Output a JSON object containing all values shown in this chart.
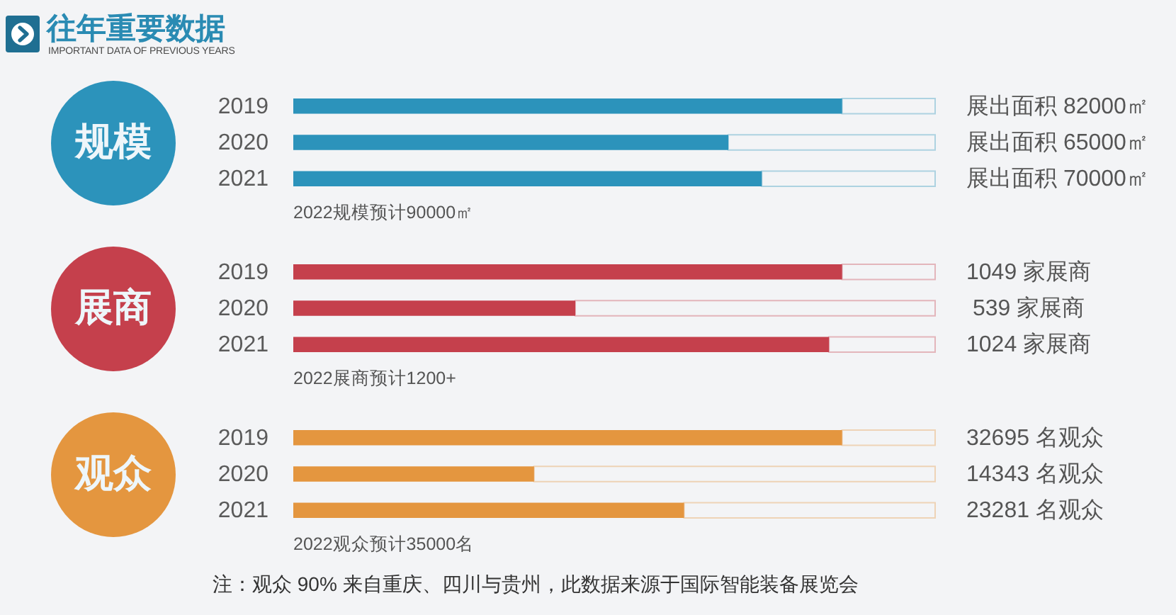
{
  "chart_data": [
    {
      "type": "other",
      "title": "往年重要数据",
      "subtitle": "IMPORTANT DATA OF PREVIOUS YEARS"
    },
    {
      "type": "bar",
      "orientation": "horizontal",
      "title": "规模",
      "categories": [
        "2019",
        "2020",
        "2021"
      ],
      "values": [
        82000,
        65000,
        70000
      ],
      "color": "#2c93bb",
      "value_labels": [
        "展出面积 82000㎡",
        "展出面积 65000㎡",
        "展出面积 70000㎡"
      ],
      "annotations": [
        "2022规模预计90000㎡"
      ]
    },
    {
      "type": "bar",
      "orientation": "horizontal",
      "title": "展商",
      "categories": [
        "2019",
        "2020",
        "2021"
      ],
      "values": [
        1049,
        539,
        1024
      ],
      "color": "#c5404c",
      "value_labels": [
        "1049 家展商",
        "539 家展商",
        "1024 家展商"
      ],
      "annotations": [
        "2022展商预计1200+"
      ]
    },
    {
      "type": "bar",
      "orientation": "horizontal",
      "title": "观众",
      "categories": [
        "2019",
        "2020",
        "2021"
      ],
      "values": [
        32695,
        14343,
        23281
      ],
      "color": "#e4963f",
      "value_labels": [
        "32695 名观众",
        "14343 名观众",
        "23281 名观众"
      ],
      "annotations": [
        "2022观众预计35000名",
        "注：观众 90% 来自重庆、四川与贵州，此数据来源于国际智能装备展览会"
      ]
    }
  ]
}
